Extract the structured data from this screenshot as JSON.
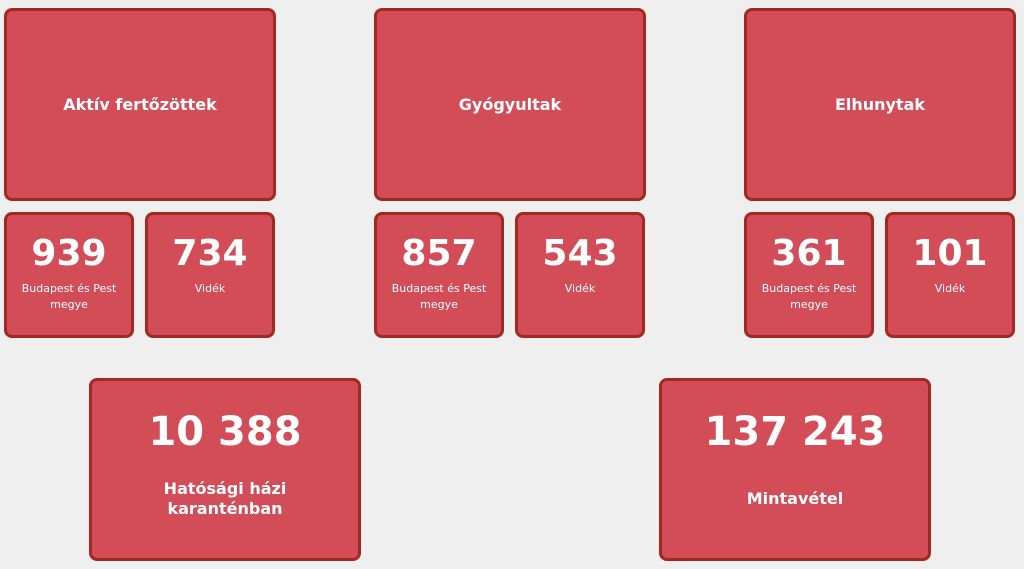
{
  "colors": {
    "card": "#d24d57",
    "border": "#a3281f",
    "background": "#efefef"
  },
  "groups": [
    {
      "title": "Aktív fertőzöttek",
      "budapest": {
        "value": "939",
        "label": "Budapest és Pest megye"
      },
      "videk": {
        "value": "734",
        "label": "Vidék"
      }
    },
    {
      "title": "Gyógyultak",
      "budapest": {
        "value": "857",
        "label": "Budapest és Pest megye"
      },
      "videk": {
        "value": "543",
        "label": "Vidék"
      }
    },
    {
      "title": "Elhunytak",
      "budapest": {
        "value": "361",
        "label": "Budapest és Pest megye"
      },
      "videk": {
        "value": "101",
        "label": "Vidék"
      }
    }
  ],
  "quarantine": {
    "value": "10 388",
    "label": "Hatósági házi karanténban"
  },
  "samples": {
    "value": "137 243",
    "label": "Mintavétel"
  }
}
